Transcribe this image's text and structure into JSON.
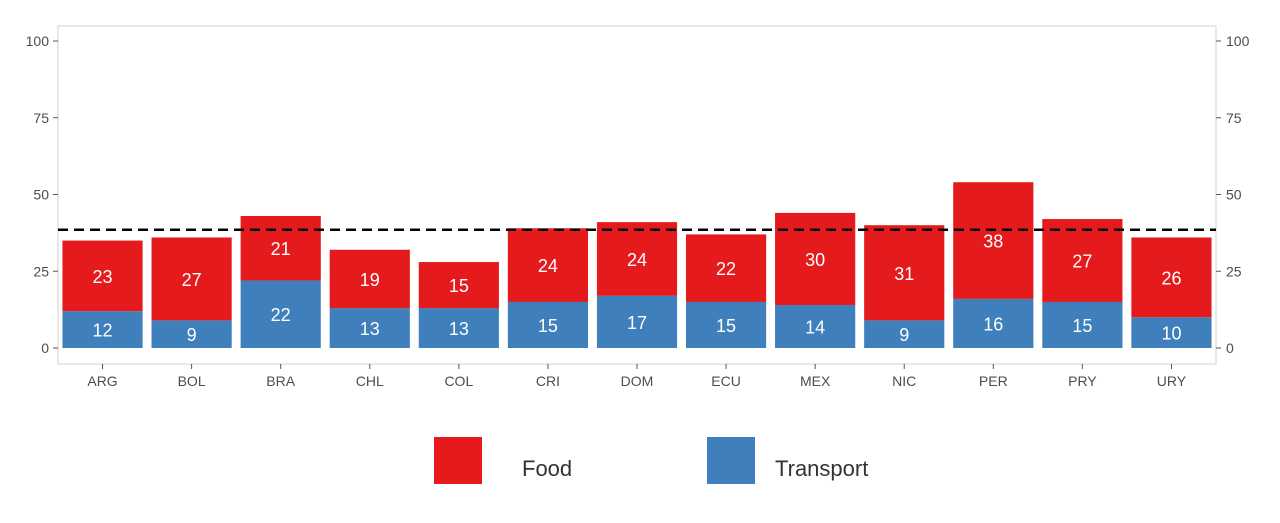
{
  "chart_data": {
    "type": "bar",
    "stacked": true,
    "categories": [
      "ARG",
      "BOL",
      "BRA",
      "CHL",
      "COL",
      "CRI",
      "DOM",
      "ECU",
      "MEX",
      "NIC",
      "PER",
      "PRY",
      "URY"
    ],
    "series": [
      {
        "name": "Transport",
        "color": "#3f7fbc",
        "values": [
          12,
          9,
          22,
          13,
          13,
          15,
          17,
          15,
          14,
          9,
          16,
          15,
          10
        ]
      },
      {
        "name": "Food",
        "color": "#e41a1c",
        "values": [
          23,
          27,
          21,
          19,
          15,
          24,
          24,
          22,
          30,
          31,
          38,
          27,
          26
        ]
      }
    ],
    "ylim": [
      -5,
      105
    ],
    "y_ticks": [
      0,
      25,
      50,
      75,
      100
    ],
    "reference_line": 38.5,
    "legend_position": "bottom",
    "grid": false,
    "secondary_y_axis": true
  },
  "legend": [
    {
      "name": "Food",
      "color": "#e41a1c"
    },
    {
      "name": "Transport",
      "color": "#3f7fbc"
    }
  ]
}
